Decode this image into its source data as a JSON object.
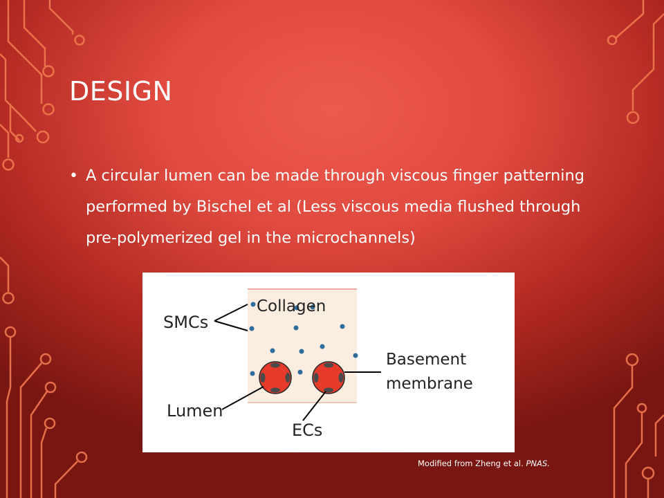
{
  "slide": {
    "title": "DESIGN",
    "bullet": "A circular lumen can be made through viscous finger patterning performed by Bischel et al (Less viscous media flushed through pre-polymerized gel in the microchannels)",
    "credit_prefix": "Modified from Zheng et al. ",
    "credit_journal": "PNAS."
  },
  "figure": {
    "labels": {
      "smcs": "SMCs",
      "collagen": "Collagen",
      "basement_line1": "Basement",
      "basement_line2": "membrane",
      "lumen": "Lumen",
      "ecs": "ECs"
    }
  },
  "colors": {
    "background_center": "#ec5a4e",
    "background_edge": "#7a1612",
    "circuit": "#f07a4f",
    "text": "#ffffff",
    "gel": "#fbeee0",
    "lumen_fill": "#e63a2a",
    "cell_dot": "#2e6e9e"
  }
}
